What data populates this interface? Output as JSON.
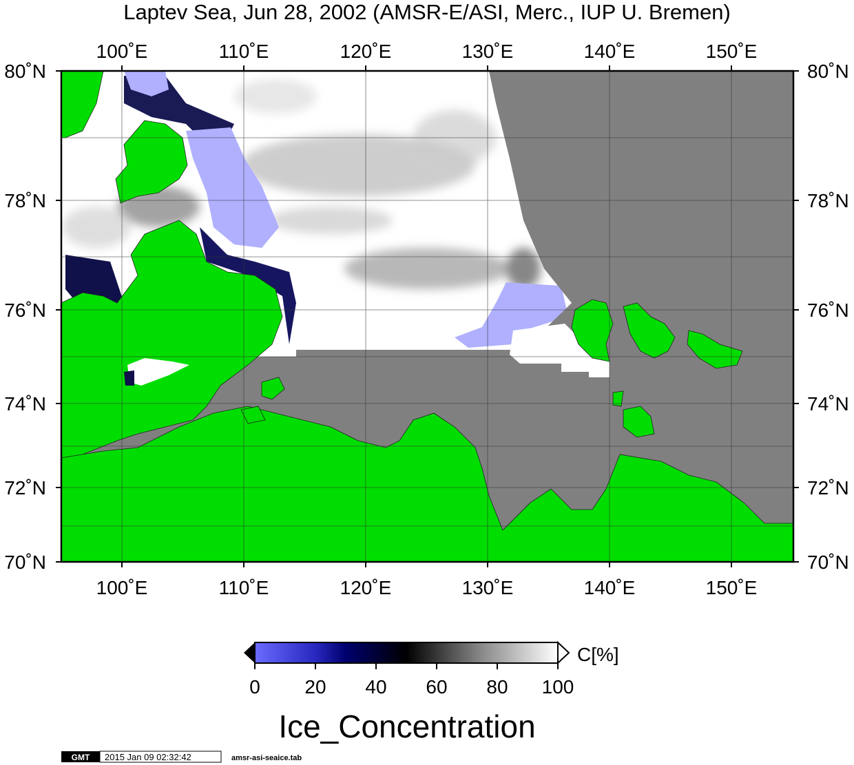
{
  "title": "Laptev Sea, Jun 28, 2002 (AMSR-E/ASI, Merc., IUP U. Bremen)",
  "lon_labels": [
    "100˚E",
    "110˚E",
    "120˚E",
    "130˚E",
    "140˚E",
    "150˚E"
  ],
  "lat_labels": [
    "80˚N",
    "78˚N",
    "76˚N",
    "74˚N",
    "72˚N",
    "70˚N"
  ],
  "colorbar": {
    "unit_label": "C[%]",
    "ticks": [
      "0",
      "20",
      "40",
      "60",
      "80",
      "100"
    ],
    "range": [
      0,
      100
    ],
    "colors": [
      "#6b6bff",
      "#00006e",
      "#000000",
      "#7a7a7a",
      "#ffffff"
    ]
  },
  "variable_name": "Ice_Concentration",
  "footer": {
    "logo": "GMT",
    "timestamp": "2015 Jan 09 02:32:42",
    "filename": "amsr-asi-seaice.tab"
  },
  "map_colors": {
    "land": "#00dd00",
    "no_data": "#808080",
    "low_ice": "#b0b0ff"
  }
}
